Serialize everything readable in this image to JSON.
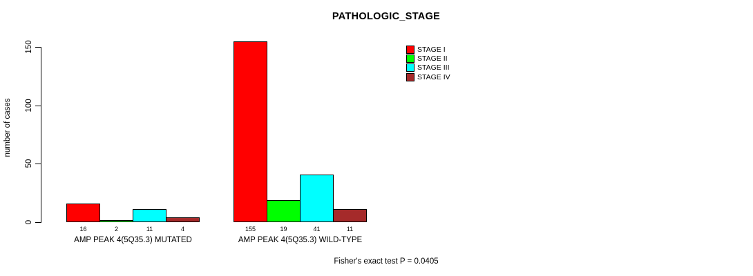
{
  "chart_data": {
    "type": "bar",
    "title": "PATHOLOGIC_STAGE",
    "xlabel": "",
    "ylabel": "number of cases",
    "ylim": [
      0,
      150
    ],
    "yticks": [
      0,
      50,
      100,
      150
    ],
    "grid": false,
    "legend_position": "top-right-inside",
    "categories": [
      "AMP PEAK 4(5Q35.3) MUTATED",
      "AMP PEAK 4(5Q35.3) WILD-TYPE"
    ],
    "series": [
      {
        "name": "STAGE I",
        "color": "#FF0000",
        "values": [
          16,
          155
        ]
      },
      {
        "name": "STAGE II",
        "color": "#00FF00",
        "values": [
          2,
          19
        ]
      },
      {
        "name": "STAGE III",
        "color": "#00FFFF",
        "values": [
          11,
          41
        ]
      },
      {
        "name": "STAGE IV",
        "color": "#A52A2A",
        "values": [
          4,
          11
        ]
      }
    ],
    "bar_value_labels": [
      [
        16,
        2,
        11,
        4
      ],
      [
        155,
        19,
        41,
        11
      ]
    ],
    "annotation": "Fisher's exact test P = 0.0405"
  },
  "colors": {
    "background": "#FFFFFF",
    "axis": "#000000",
    "text": "#000000",
    "bar_border": "#000000"
  }
}
